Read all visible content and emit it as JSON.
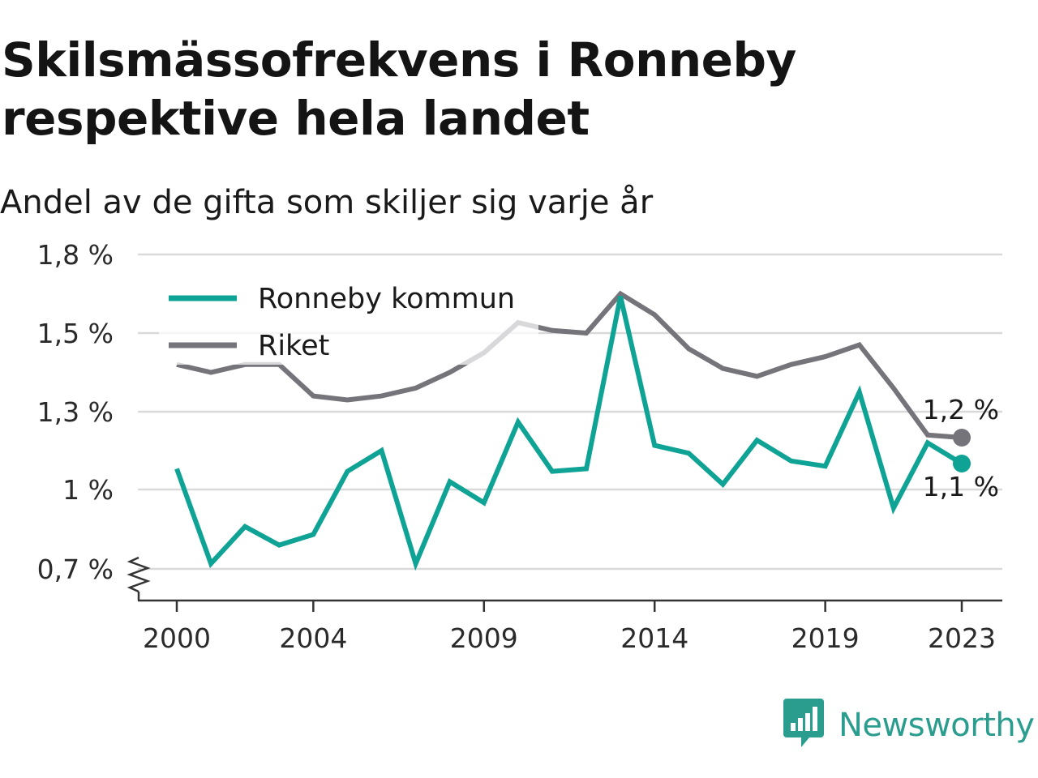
{
  "header": {
    "title": "Skilsmässofrekvens i Ronneby respektive hela landet",
    "subtitle": "Andel av de gifta som skiljer sig varje år"
  },
  "brand": {
    "name": "Newsworthy",
    "color": "#2a9d8f",
    "icon": "newsworthy-logo-icon"
  },
  "colors": {
    "ronneby": "#0fa396",
    "riket": "#75747a",
    "grid": "#d9d9d9",
    "axis": "#333333"
  },
  "chart_data": {
    "type": "line",
    "title": "Skilsmässofrekvens i Ronneby respektive hela landet",
    "subtitle": "Andel av de gifta som skiljer sig varje år",
    "xlabel": "",
    "ylabel": "",
    "x": [
      2000,
      2001,
      2002,
      2003,
      2004,
      2005,
      2006,
      2007,
      2008,
      2009,
      2010,
      2011,
      2012,
      2013,
      2014,
      2015,
      2016,
      2017,
      2018,
      2019,
      2020,
      2021,
      2022,
      2023
    ],
    "x_tick_labels": [
      "2000",
      "2004",
      "2009",
      "2014",
      "2019",
      "2023"
    ],
    "x_tick_values": [
      2000,
      2004,
      2009,
      2014,
      2019,
      2023
    ],
    "y_tick_labels": [
      "0,7 %",
      "1 %",
      "1,3 %",
      "1,5 %",
      "1,8 %"
    ],
    "y_tick_values": [
      0.7,
      1.0,
      1.3,
      1.5,
      1.8
    ],
    "y_axis_break": true,
    "grid": true,
    "legend_position": "top-left",
    "series": [
      {
        "name": "Ronneby kommun",
        "color": "#0fa396",
        "values": [
          1.08,
          0.72,
          0.86,
          0.79,
          0.83,
          1.07,
          1.15,
          0.72,
          1.03,
          0.95,
          1.26,
          1.07,
          1.08,
          1.64,
          1.17,
          1.14,
          1.02,
          1.19,
          1.11,
          1.09,
          1.35,
          0.93,
          1.18,
          1.1
        ],
        "end_label": "1,1 %"
      },
      {
        "name": "Riket",
        "color": "#75747a",
        "values": [
          1.42,
          1.4,
          1.42,
          1.42,
          1.34,
          1.33,
          1.34,
          1.36,
          1.4,
          1.45,
          1.54,
          1.51,
          1.5,
          1.65,
          1.57,
          1.46,
          1.41,
          1.39,
          1.42,
          1.44,
          1.47,
          1.36,
          1.21,
          1.2
        ],
        "end_label": "1,2 %"
      }
    ]
  }
}
